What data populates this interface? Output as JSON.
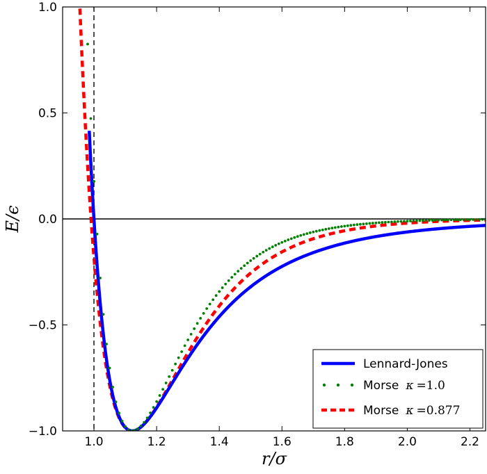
{
  "chart_data": {
    "type": "line",
    "title": "",
    "xlabel": "r/σ",
    "ylabel": "E/ϵ",
    "xlim": [
      0.9,
      2.25
    ],
    "ylim": [
      -1.0,
      1.0
    ],
    "x_ticks": [
      1.0,
      1.2,
      1.4,
      1.6,
      1.8,
      2.0,
      2.2
    ],
    "y_ticks": [
      -1.0,
      -0.5,
      0.0,
      0.5,
      1.0
    ],
    "x_tick_labels": [
      "1.0",
      "1.2",
      "1.4",
      "1.6",
      "1.8",
      "2.0",
      "2.2"
    ],
    "y_tick_labels": [
      "−1.0",
      "−0.5",
      "0.0",
      "0.5",
      "1.0"
    ],
    "reference_lines": {
      "horizontal_y": 0.0,
      "vertical_x": 1.0
    },
    "legend_position": "lower-right",
    "series": [
      {
        "name": "Lennard-Jones",
        "legend_prefix": "Lennard-Jones",
        "legend_math": "",
        "style": "solid",
        "color": "#0000ff",
        "formula": "4*(r^-12 - r^-6)"
      },
      {
        "name": "Morse κ=1.0",
        "legend_prefix": "Morse",
        "legend_symbol": "κ",
        "legend_value": "=1.0",
        "style": "dotted",
        "color": "#007f00",
        "kappa": 1.0,
        "formula": "(1 - exp(-6*kappa*(r - 2^(1/6))))^2 - 1"
      },
      {
        "name": "Morse κ=0.877",
        "legend_prefix": "Morse",
        "legend_symbol": "κ",
        "legend_value": "=0.877",
        "style": "dashed",
        "color": "#ff0000",
        "kappa": 0.877,
        "formula": "(1 - exp(-6*kappa*(r - 2^(1/6))))^2 - 1"
      }
    ]
  }
}
